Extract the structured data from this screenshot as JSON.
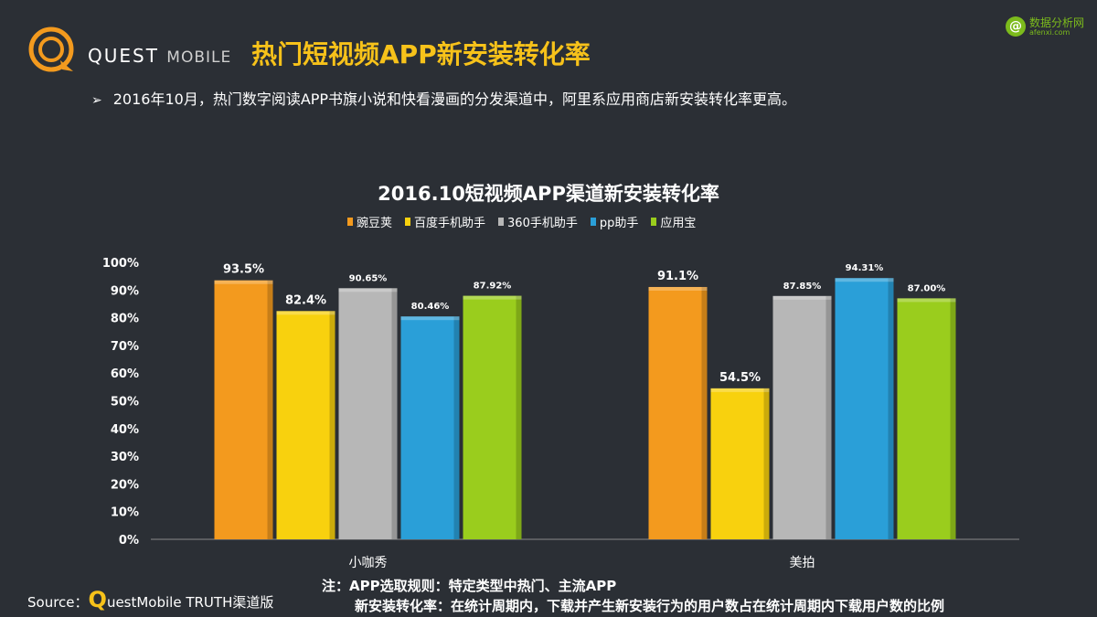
{
  "header": {
    "logo_text": "QUEST",
    "logo_text_light": "MOBILE",
    "title": "热门短视频APP新安装转化率",
    "watermark_text": "数据分析网",
    "watermark_sub": "afenxi.com"
  },
  "bullet": "2016年10月，热门数字阅读APP书旗小说和快看漫画的分发渠道中，阿里系应用商店新安装转化率更高。",
  "colors": {
    "background": "#2b2f35",
    "title": "#f7c21a",
    "series": [
      "#f39a1e",
      "#f8d10e",
      "#b7b7b7",
      "#2a9fd8",
      "#9acd1d"
    ]
  },
  "chart_data": {
    "type": "bar",
    "title": "2016.10短视频APP渠道新安装转化率",
    "categories": [
      "小咖秀",
      "美拍"
    ],
    "ylim": [
      0,
      100
    ],
    "yticks": [
      "0%",
      "10%",
      "20%",
      "30%",
      "40%",
      "50%",
      "60%",
      "70%",
      "80%",
      "90%",
      "100%"
    ],
    "grid": false,
    "legend_position": "top",
    "series": [
      {
        "name": "豌豆荚",
        "values": [
          93.5,
          91.1
        ],
        "labels": [
          "93.5%",
          "91.1%"
        ]
      },
      {
        "name": "百度手机助手",
        "values": [
          82.4,
          54.5
        ],
        "labels": [
          "82.4%",
          "54.5%"
        ]
      },
      {
        "name": "360手机助手",
        "values": [
          90.65,
          87.85
        ],
        "labels": [
          "90.65%",
          "87.85%"
        ]
      },
      {
        "name": "pp助手",
        "values": [
          80.46,
          94.31
        ],
        "labels": [
          "80.46%",
          "94.31%"
        ]
      },
      {
        "name": "应用宝",
        "values": [
          87.92,
          87.0
        ],
        "labels": [
          "87.92%",
          "87.00%"
        ]
      }
    ]
  },
  "notes": {
    "line1": "注：APP选取规则：特定类型中热门、主流APP",
    "line2": "新安装转化率：在统计周期内，下载并产生新安装行为的用户数占在统计周期内下载用户数的比例"
  },
  "source": {
    "label": "Source：",
    "q": "Q",
    "rest": "uestMobile TRUTH渠道版"
  }
}
